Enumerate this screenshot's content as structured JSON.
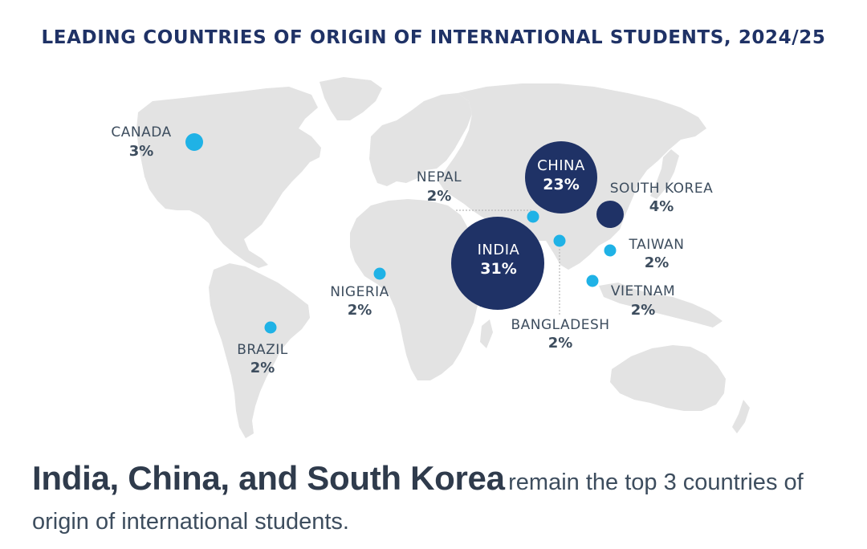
{
  "title": "LEADING COUNTRIES OF ORIGIN OF INTERNATIONAL STUDENTS, 2024/25",
  "colors": {
    "title": "#1f3266",
    "land": "#e3e3e3",
    "large_bubble": "#1f3266",
    "small_dot": "#1fb2e6",
    "label_text": "#3d4d5e",
    "bubble_text": "#ffffff",
    "leader_line": "#b8b8b8"
  },
  "countries": [
    {
      "id": "india",
      "name": "INDIA",
      "value": "31%",
      "style": "bubble-label-inside"
    },
    {
      "id": "china",
      "name": "CHINA",
      "value": "23%",
      "style": "bubble-label-inside"
    },
    {
      "id": "south-korea",
      "name": "SOUTH KOREA",
      "value": "4%",
      "style": "bubble"
    },
    {
      "id": "canada",
      "name": "CANADA",
      "value": "3%",
      "style": "dot"
    },
    {
      "id": "nepal",
      "name": "NEPAL",
      "value": "2%",
      "style": "dot"
    },
    {
      "id": "bangladesh",
      "name": "BANGLADESH",
      "value": "2%",
      "style": "dot"
    },
    {
      "id": "taiwan",
      "name": "TAIWAN",
      "value": "2%",
      "style": "dot"
    },
    {
      "id": "vietnam",
      "name": "VIETNAM",
      "value": "2%",
      "style": "dot"
    },
    {
      "id": "nigeria",
      "name": "NIGERIA",
      "value": "2%",
      "style": "dot"
    },
    {
      "id": "brazil",
      "name": "BRAZIL",
      "value": "2%",
      "style": "dot"
    }
  ],
  "footer": {
    "highlight": "India, China, and South Korea",
    "rest": "remain the top 3 countries of origin of international students."
  }
}
